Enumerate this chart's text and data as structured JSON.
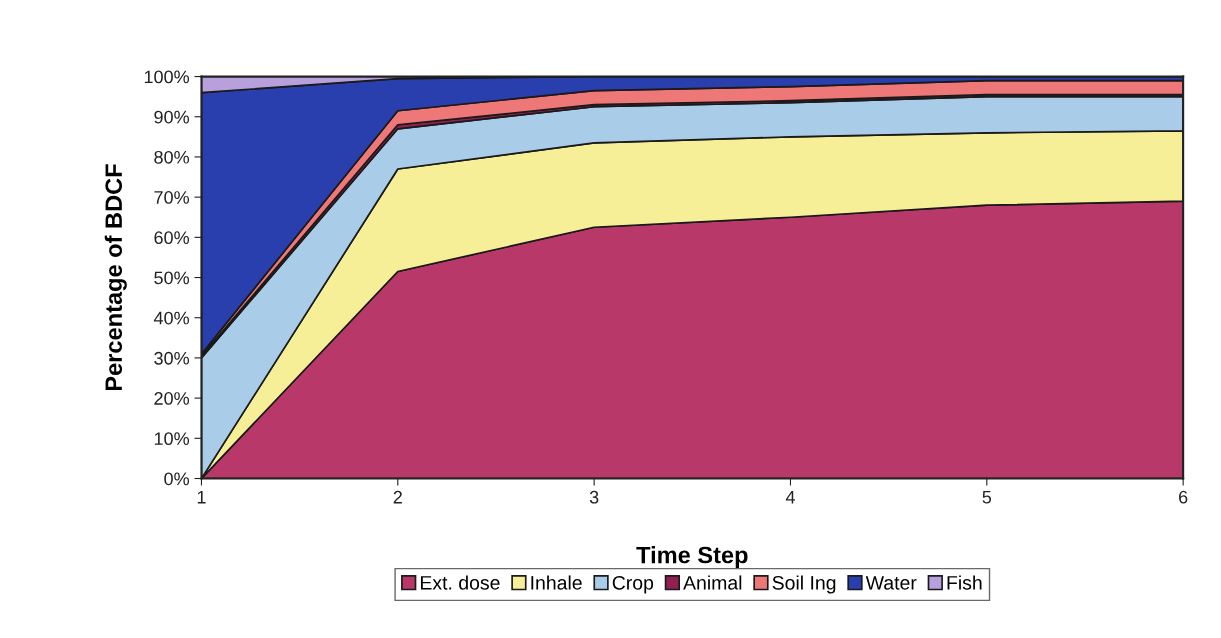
{
  "chart_data": {
    "type": "area",
    "stacked": true,
    "xlabel": "Time Step",
    "ylabel": "Percentage of BDCF",
    "x": [
      1,
      2,
      3,
      4,
      5,
      6
    ],
    "xlim": [
      1,
      6
    ],
    "xticks": [
      1,
      2,
      3,
      4,
      5,
      6
    ],
    "ylim": [
      0,
      100
    ],
    "yticks": [
      {
        "value": 0,
        "label": "0%"
      },
      {
        "value": 10,
        "label": "10%"
      },
      {
        "value": 20,
        "label": "20%"
      },
      {
        "value": 30,
        "label": "30%"
      },
      {
        "value": 40,
        "label": "40%"
      },
      {
        "value": 50,
        "label": "50%"
      },
      {
        "value": 60,
        "label": "60%"
      },
      {
        "value": 70,
        "label": "70%"
      },
      {
        "value": 80,
        "label": "80%"
      },
      {
        "value": 90,
        "label": "90%"
      },
      {
        "value": 100,
        "label": "100%"
      }
    ],
    "grid": false,
    "legend": "bottom",
    "series": [
      {
        "name": "Ext. dose",
        "color": "#b8386a",
        "values": [
          0,
          51.5,
          62.5,
          65,
          68,
          69
        ]
      },
      {
        "name": "Inhale",
        "color": "#f7ee98",
        "values": [
          0,
          25.5,
          21,
          20,
          18,
          17.5
        ]
      },
      {
        "name": "Crop",
        "color": "#a9cce8",
        "values": [
          30,
          10,
          9,
          8.5,
          9,
          8.5
        ]
      },
      {
        "name": "Animal",
        "color": "#8f2050",
        "values": [
          0.5,
          1,
          0.5,
          0.5,
          0.5,
          0.5
        ]
      },
      {
        "name": "Soil Ing",
        "color": "#ee7777",
        "values": [
          0.5,
          3.5,
          3.5,
          3.5,
          3.5,
          3.5
        ]
      },
      {
        "name": "Water",
        "color": "#2a3fae",
        "values": [
          65,
          8,
          3.5,
          2.5,
          1,
          1
        ]
      },
      {
        "name": "Fish",
        "color": "#b8a0dc",
        "values": [
          4,
          0.5,
          0,
          0,
          0,
          0
        ]
      }
    ]
  }
}
